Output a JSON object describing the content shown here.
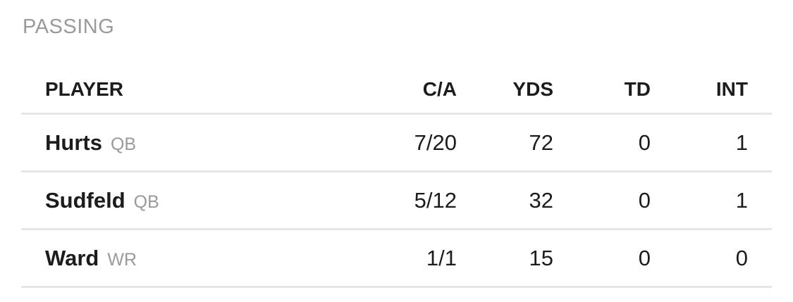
{
  "section": {
    "title": "PASSING"
  },
  "table": {
    "headers": [
      "PLAYER",
      "C/A",
      "YDS",
      "TD",
      "INT"
    ],
    "rows": [
      {
        "player": "Hurts",
        "position": "QB",
        "ca": "7/20",
        "yds": 72,
        "td": 0,
        "int": 1
      },
      {
        "player": "Sudfeld",
        "position": "QB",
        "ca": "5/12",
        "yds": 32,
        "td": 0,
        "int": 1
      },
      {
        "player": "Ward",
        "position": "WR",
        "ca": "1/1",
        "yds": 15,
        "td": 0,
        "int": 0
      }
    ]
  }
}
